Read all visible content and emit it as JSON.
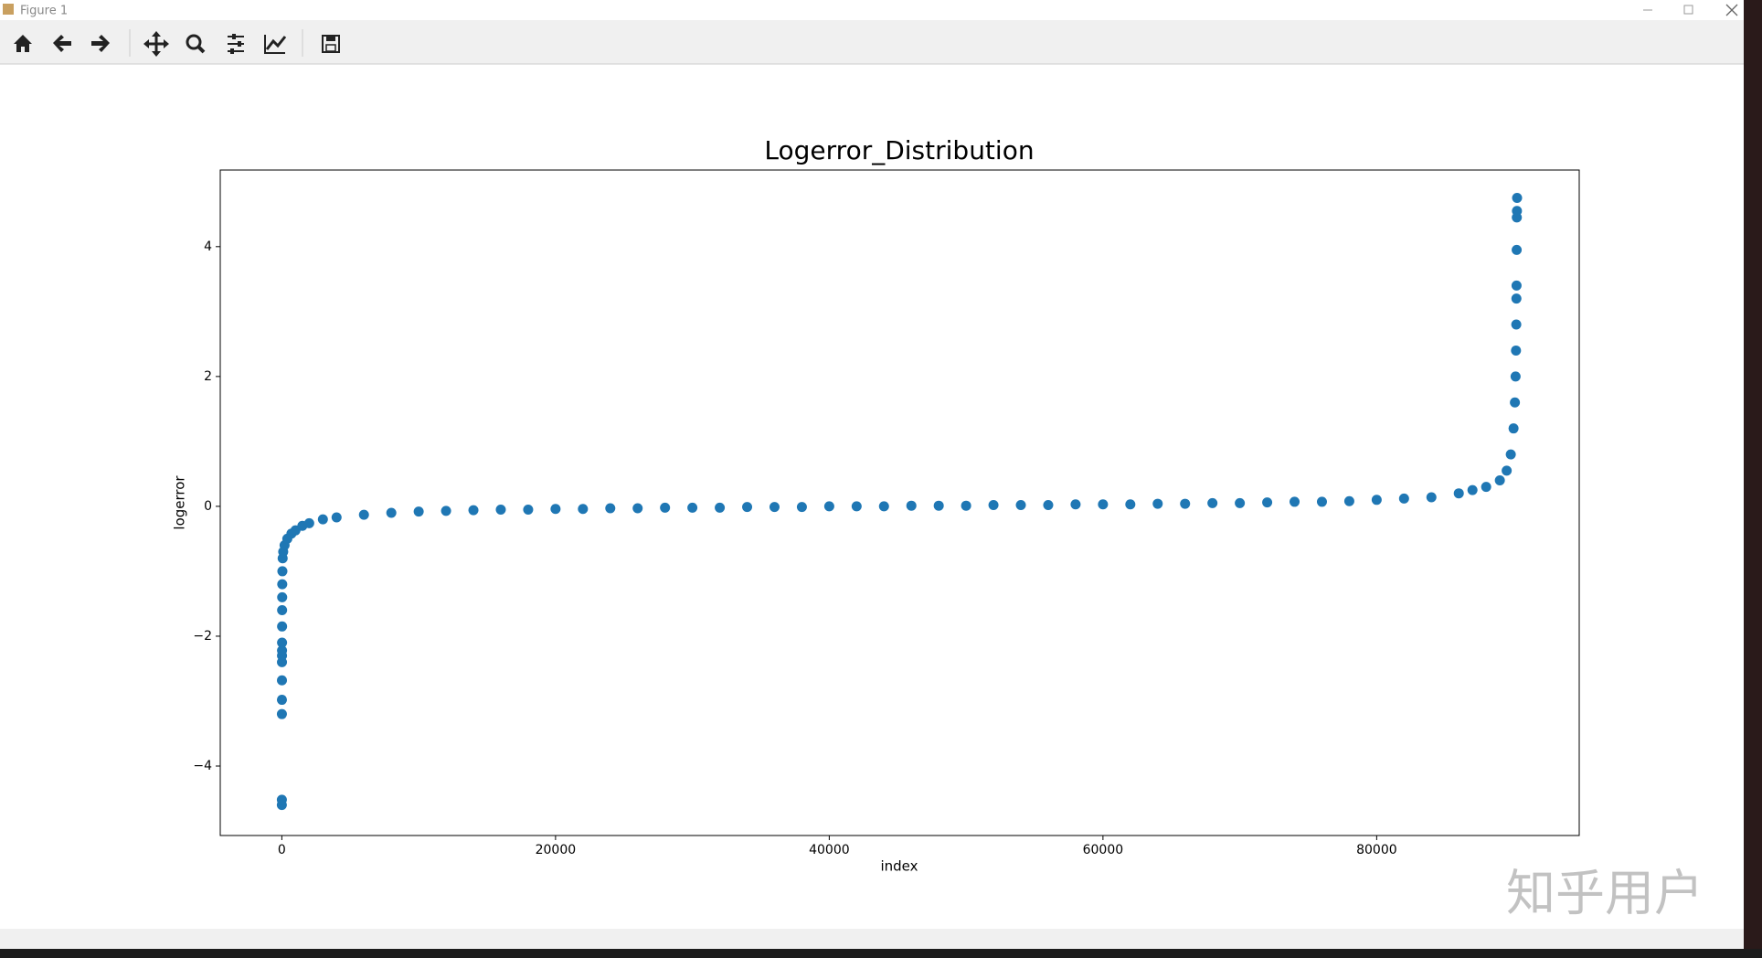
{
  "window": {
    "title": "Figure 1"
  },
  "watermark": "知乎用户",
  "chart_data": {
    "type": "scatter",
    "title": "Logerror_Distribution",
    "xlabel": "index",
    "ylabel": "logerror",
    "color": "#1f77b4",
    "x": [
      0,
      2,
      4,
      6,
      8,
      10,
      12,
      14,
      16,
      18,
      20,
      25,
      30,
      40,
      60,
      100,
      200,
      400,
      700,
      1000,
      1500,
      2000,
      3000,
      4000,
      6000,
      8000,
      10000,
      12000,
      14000,
      16000,
      18000,
      20000,
      22000,
      24000,
      26000,
      28000,
      30000,
      32000,
      34000,
      36000,
      38000,
      40000,
      42000,
      44000,
      46000,
      48000,
      50000,
      52000,
      54000,
      56000,
      58000,
      60000,
      62000,
      64000,
      66000,
      68000,
      70000,
      72000,
      74000,
      76000,
      78000,
      80000,
      82000,
      84000,
      86000,
      87000,
      88000,
      89000,
      89500,
      89800,
      90000,
      90100,
      90150,
      90180,
      90200,
      90210,
      90220,
      90230,
      90240,
      90250,
      90260
    ],
    "values": [
      -4.6,
      -4.52,
      -3.2,
      -2.98,
      -2.68,
      -2.4,
      -2.3,
      -2.22,
      -2.1,
      -1.85,
      -1.6,
      -1.4,
      -1.2,
      -1.0,
      -0.8,
      -0.7,
      -0.6,
      -0.5,
      -0.42,
      -0.37,
      -0.3,
      -0.26,
      -0.2,
      -0.17,
      -0.13,
      -0.1,
      -0.08,
      -0.07,
      -0.06,
      -0.05,
      -0.05,
      -0.04,
      -0.04,
      -0.03,
      -0.03,
      -0.02,
      -0.02,
      -0.02,
      -0.01,
      -0.01,
      -0.01,
      0,
      0,
      0,
      0.01,
      0.01,
      0.01,
      0.02,
      0.02,
      0.02,
      0.03,
      0.03,
      0.03,
      0.04,
      0.04,
      0.05,
      0.05,
      0.06,
      0.07,
      0.07,
      0.08,
      0.1,
      0.12,
      0.14,
      0.2,
      0.25,
      0.3,
      0.4,
      0.55,
      0.8,
      1.2,
      1.6,
      2.0,
      2.4,
      2.8,
      3.2,
      3.4,
      3.95,
      4.45,
      4.55,
      4.75
    ],
    "xlim": [
      -4500,
      94800
    ],
    "ylim": [
      -5.07,
      5.18
    ],
    "xticks": [
      0,
      20000,
      40000,
      60000,
      80000
    ],
    "yticks": [
      {
        "value": -4,
        "label": "−4"
      },
      {
        "value": -2,
        "label": "−2"
      },
      0,
      2,
      4
    ]
  }
}
